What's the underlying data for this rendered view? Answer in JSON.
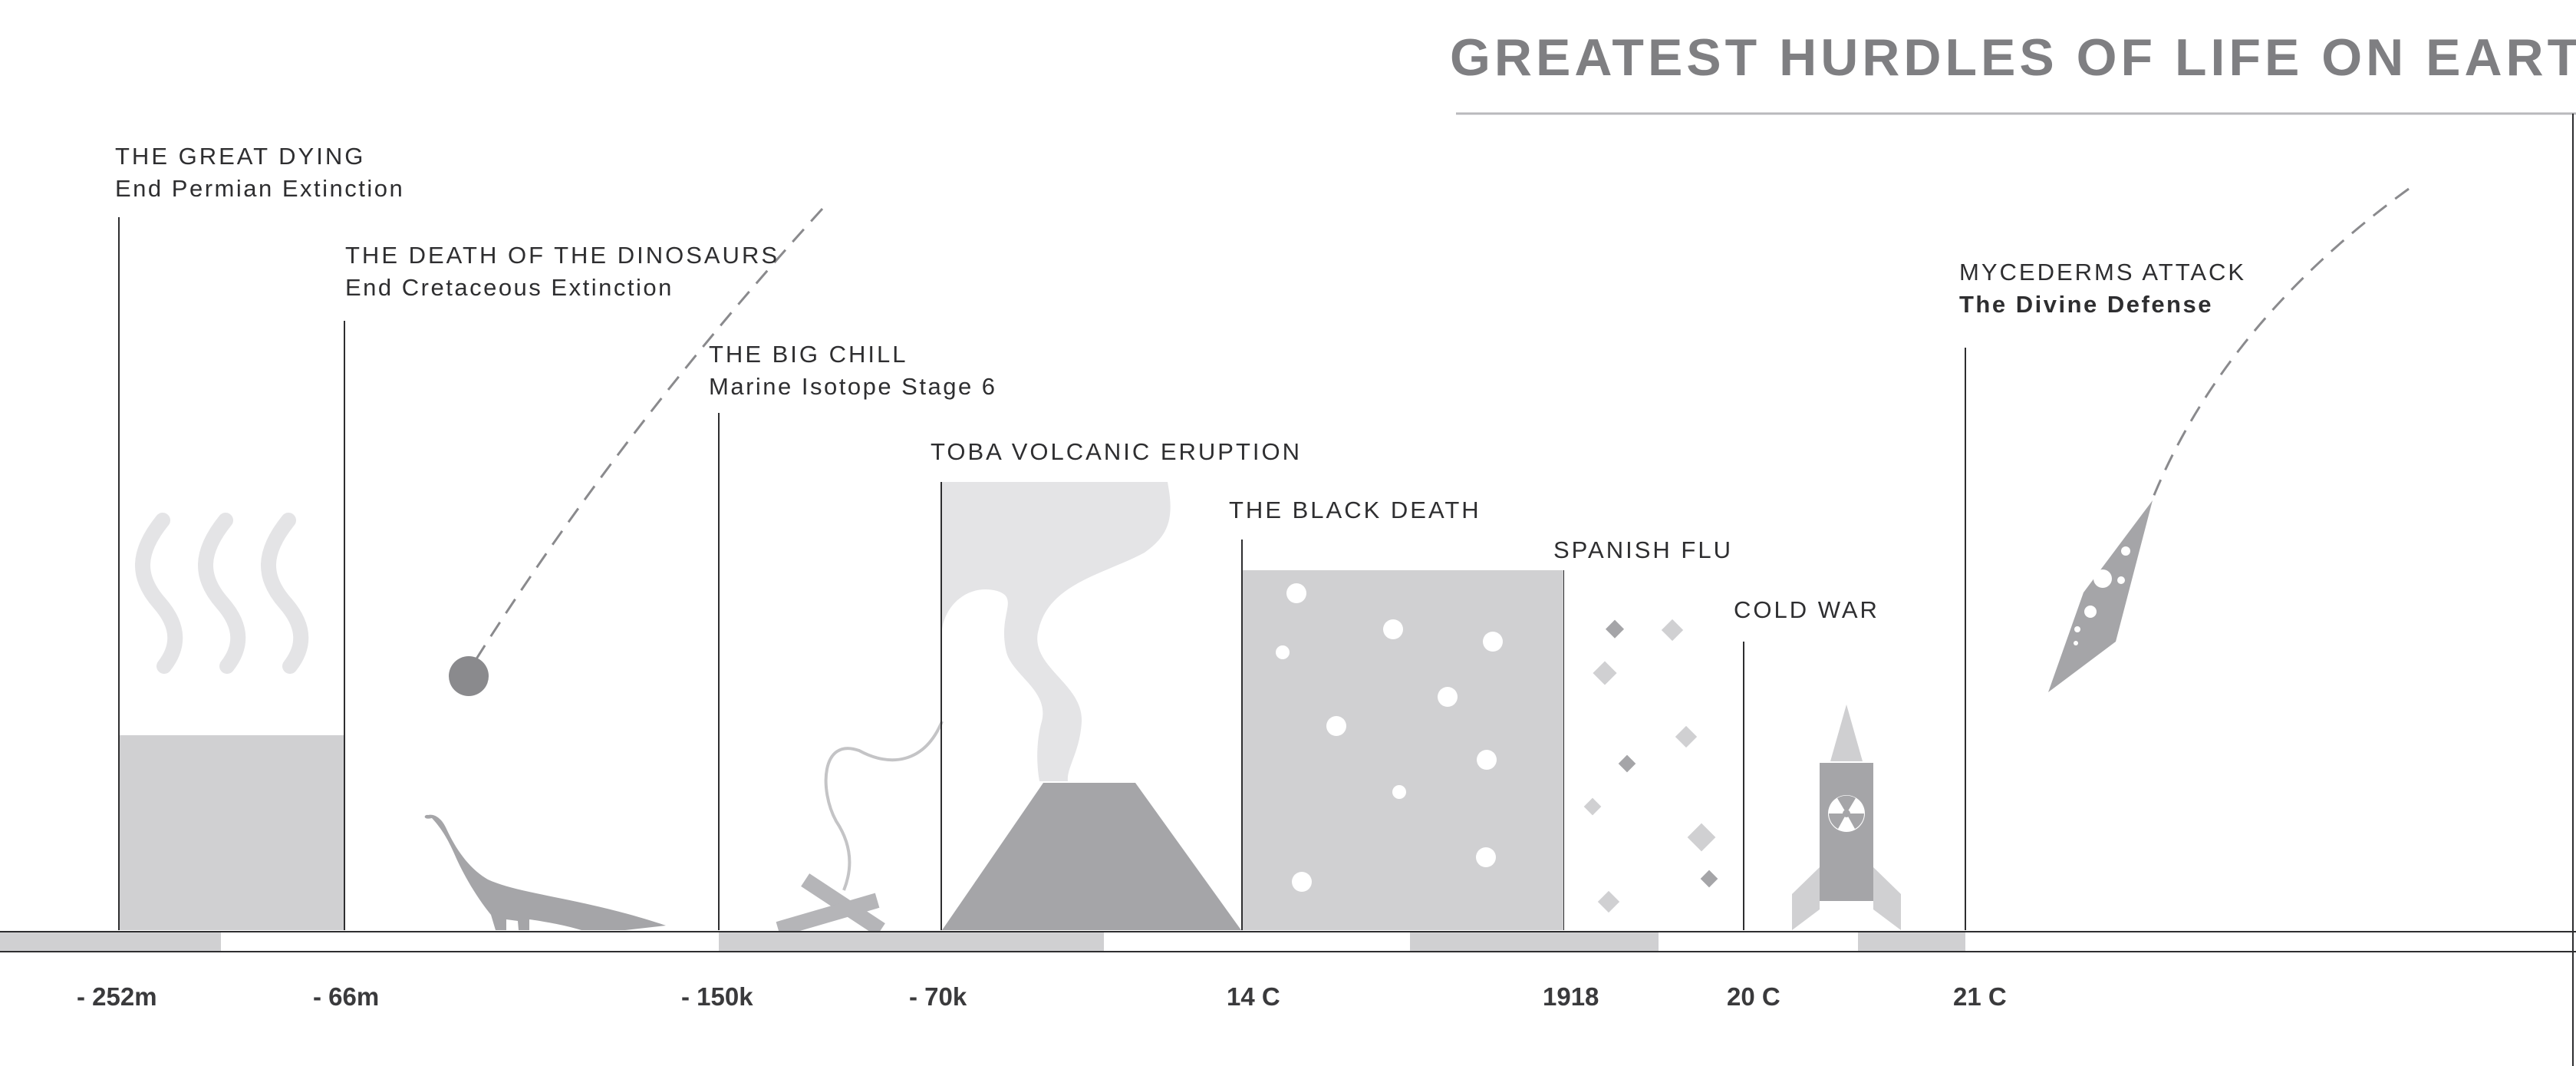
{
  "title": "GREATEST HURDLES OF LIFE ON EARTH",
  "events": [
    {
      "id": "great-dying",
      "name": "THE GREAT DYING",
      "subtitle": "End Permian Extinction"
    },
    {
      "id": "dinosaurs",
      "name": "THE DEATH OF THE DINOSAURS",
      "subtitle": "End Cretaceous Extinction"
    },
    {
      "id": "big-chill",
      "name": "THE BIG CHILL",
      "subtitle": "Marine Isotope Stage 6"
    },
    {
      "id": "toba",
      "name": "TOBA VOLCANIC ERUPTION"
    },
    {
      "id": "black-death",
      "name": "THE BLACK DEATH"
    },
    {
      "id": "spanish-flu",
      "name": "SPANISH FLU"
    },
    {
      "id": "cold-war",
      "name": "COLD WAR"
    },
    {
      "id": "mycederms",
      "name": "MYCEDERMS ATTACK",
      "subtitle": "The Divine Defense"
    }
  ],
  "timeline_ticks": [
    "- 252m",
    "- 66m",
    "- 150k",
    "- 70k",
    "14 C",
    "1918",
    "20 C",
    "21 C"
  ],
  "colors": {
    "title": "#7f7f82",
    "line": "#2e2e30",
    "light_fill": "#d0d0d2",
    "very_light_fill": "#e4e4e6",
    "mid_fill": "#a5a5a8",
    "dark_fill": "#8a8a8d"
  },
  "icons": [
    "steam-icon",
    "meteor-icon",
    "dinosaur-icon",
    "campfire-icon",
    "volcano-icon",
    "plague-cells-icon",
    "flu-particles-icon",
    "rocket-icon",
    "radiation-icon",
    "alien-ship-icon"
  ]
}
